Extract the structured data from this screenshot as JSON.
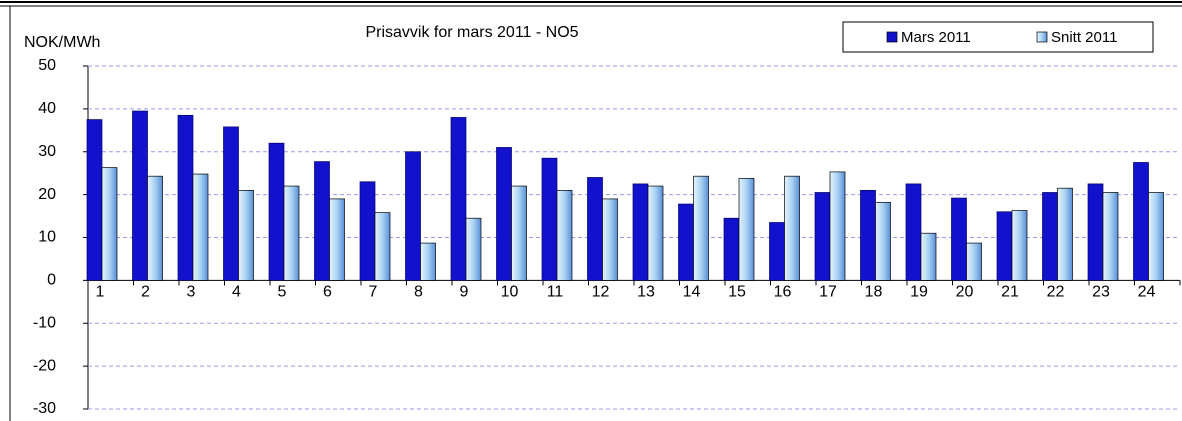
{
  "chart_data": {
    "type": "bar",
    "title": "Prisavvik for mars 2011 - NO5",
    "y_label": "NOK/MWh",
    "categories": [
      "1",
      "2",
      "3",
      "4",
      "5",
      "6",
      "7",
      "8",
      "9",
      "10",
      "11",
      "12",
      "13",
      "14",
      "15",
      "16",
      "17",
      "18",
      "19",
      "20",
      "21",
      "22",
      "23",
      "24"
    ],
    "series": [
      {
        "name": "Mars 2011",
        "color": "#1212cc",
        "values": [
          37.5,
          39.5,
          38.5,
          35.8,
          32,
          27.7,
          23,
          30,
          38,
          31,
          28.5,
          24,
          22.5,
          17.8,
          14.5,
          13.5,
          20.5,
          21,
          22.5,
          19.2,
          16,
          20.5,
          22.5,
          27.5
        ]
      },
      {
        "name": "Snitt 2011",
        "color": "#a9d2f2",
        "values": [
          26.3,
          24.3,
          24.8,
          21,
          22,
          19,
          15.8,
          8.7,
          14.5,
          22,
          21,
          19,
          22,
          24.3,
          23.8,
          24.3,
          25.3,
          18.2,
          11,
          8.7,
          16.3,
          21.5,
          20.5,
          20.5
        ]
      }
    ],
    "ylim": [
      -30,
      50
    ],
    "yticks": [
      -30,
      -20,
      -10,
      0,
      10,
      20,
      30,
      40,
      50
    ],
    "grid": true,
    "legend": "top-right"
  }
}
